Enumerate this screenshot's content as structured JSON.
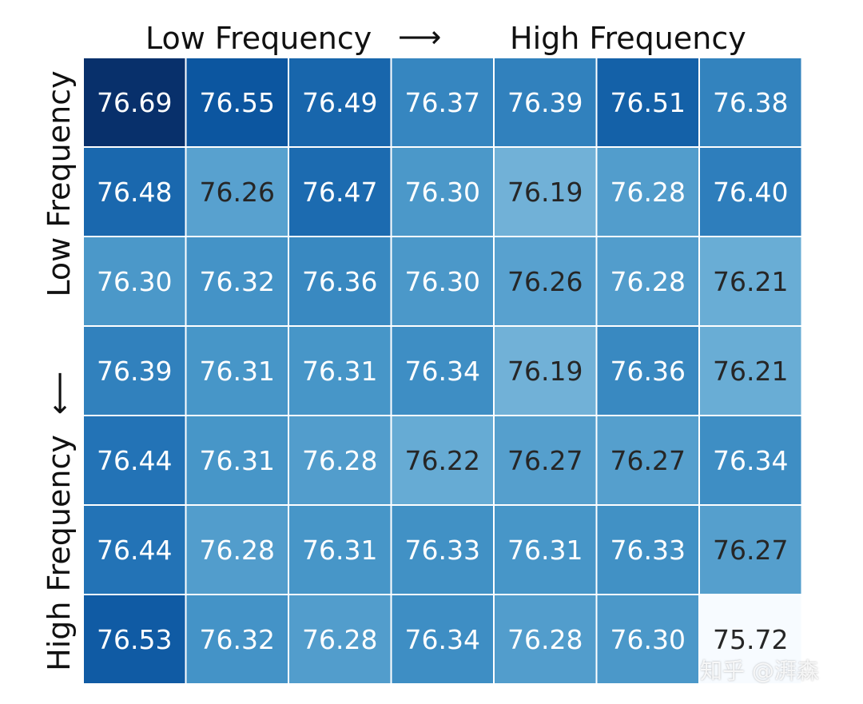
{
  "chart_data": {
    "type": "heatmap",
    "title": "",
    "x_label_left": "Low Frequency",
    "x_label_right": "High Frequency",
    "x_arrow": "⟶",
    "y_label_top": "Low Frequency",
    "y_label_bottom": "High Frequency",
    "y_arrow": "⟵",
    "colormap": "Blues",
    "value_range": [
      75.72,
      76.69
    ],
    "values": [
      [
        76.69,
        76.55,
        76.49,
        76.37,
        76.39,
        76.51,
        76.38
      ],
      [
        76.48,
        76.26,
        76.47,
        76.3,
        76.19,
        76.28,
        76.4
      ],
      [
        76.3,
        76.32,
        76.36,
        76.3,
        76.26,
        76.28,
        76.21
      ],
      [
        76.39,
        76.31,
        76.31,
        76.34,
        76.19,
        76.36,
        76.21
      ],
      [
        76.44,
        76.31,
        76.28,
        76.22,
        76.27,
        76.27,
        76.34
      ],
      [
        76.44,
        76.28,
        76.31,
        76.33,
        76.31,
        76.33,
        76.27
      ],
      [
        76.53,
        76.32,
        76.28,
        76.34,
        76.28,
        76.3,
        75.72
      ]
    ]
  },
  "watermark": "知乎 @湃森",
  "colors": {
    "dark": "#08306b",
    "light": "#f7fbff",
    "grid_line": "#ffffff",
    "text_light": "#ffffff",
    "text_dark": "#262626"
  }
}
